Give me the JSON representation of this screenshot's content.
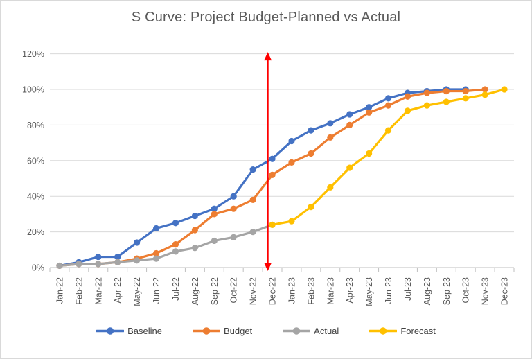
{
  "chart_data": {
    "type": "line",
    "title": "S Curve: Project Budget-Planned vs Actual",
    "categories": [
      "Jan-22",
      "Feb-22",
      "Mar-22",
      "Apr-22",
      "May-22",
      "Jun-22",
      "Jul-22",
      "Aug-22",
      "Sep-22",
      "Oct-22",
      "Nov-22",
      "Dec-22",
      "Jan-23",
      "Feb-23",
      "Mar-23",
      "Apr-23",
      "May-23",
      "Jun-23",
      "Jul-23",
      "Aug-23",
      "Sep-23",
      "Oct-23",
      "Nov-23",
      "Dec-23"
    ],
    "unit": "%",
    "series": [
      {
        "name": "Baseline",
        "color": "#4472C4",
        "values": [
          1,
          3,
          6,
          6,
          14,
          22,
          25,
          29,
          33,
          40,
          55,
          61,
          71,
          77,
          81,
          86,
          90,
          95,
          98,
          99,
          100,
          100,
          null,
          null
        ]
      },
      {
        "name": "Budget",
        "color": "#ED7D31",
        "values": [
          1,
          2,
          2,
          3,
          5,
          8,
          13,
          21,
          30,
          33,
          38,
          52,
          59,
          64,
          73,
          80,
          87,
          91,
          96,
          98,
          99,
          99,
          100,
          null
        ]
      },
      {
        "name": "Actual",
        "color": "#A5A5A5",
        "values": [
          1,
          2,
          2,
          3,
          4,
          5,
          9,
          11,
          15,
          17,
          20,
          24,
          null,
          null,
          null,
          null,
          null,
          null,
          null,
          null,
          null,
          null,
          null,
          null
        ]
      },
      {
        "name": "Forecast",
        "color": "#FFC000",
        "values": [
          null,
          null,
          null,
          null,
          null,
          null,
          null,
          null,
          null,
          null,
          null,
          24,
          26,
          34,
          45,
          56,
          64,
          77,
          88,
          91,
          93,
          95,
          97,
          100
        ]
      }
    ],
    "y_axis": {
      "min": 0,
      "max": 120,
      "tick_step": 20,
      "tick_labels": [
        "0%",
        "20%",
        "40%",
        "60%",
        "80%",
        "100%",
        "120%"
      ]
    },
    "x_axis": {
      "label_rotation_deg": -90
    },
    "grid": true,
    "legend_position": "bottom",
    "annotation": {
      "type": "vertical-double-arrow",
      "color": "#FF0000",
      "position": "between Nov-22 and Dec-22",
      "x_index": 10.77,
      "y_from": 0,
      "y_to": 120
    },
    "style": {
      "gridline_color": "#D9D9D9",
      "axis_line_color": "#BFBFBF",
      "label_color": "#595959",
      "title_color": "#595959"
    }
  }
}
